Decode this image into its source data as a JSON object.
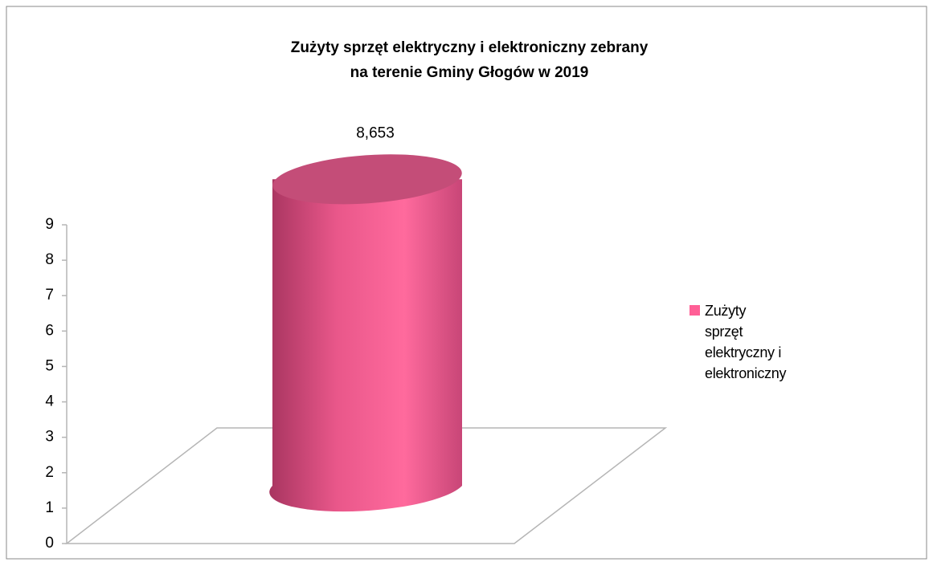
{
  "chart_data": {
    "type": "bar",
    "title": [
      "Zużyty sprzęt elektryczny i elektroniczny zebrany",
      "na terenie Gminy Głogów w 2019"
    ],
    "categories": [
      null
    ],
    "series": [
      {
        "name": "Zużyty sprzęt elektryczny i elektroniczny",
        "color": "#ff5f96",
        "values": [
          8.653
        ],
        "value_labels": [
          "8,653"
        ]
      }
    ],
    "ylim": [
      0,
      9
    ],
    "yticks": [
      0,
      1,
      2,
      3,
      4,
      5,
      6,
      7,
      8,
      9
    ],
    "legend": "right",
    "grid": false
  }
}
